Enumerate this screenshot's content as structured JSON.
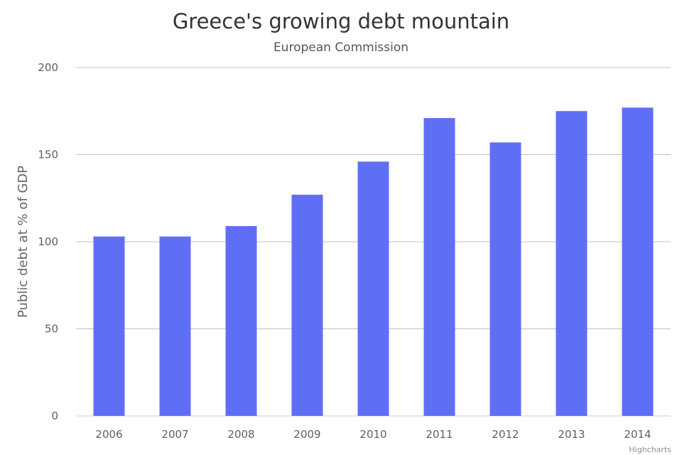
{
  "chart_data": {
    "type": "bar",
    "title": "Greece's growing debt mountain",
    "subtitle": "European Commission",
    "xlabel": "",
    "ylabel": "Public debt at % of GDP",
    "categories": [
      "2006",
      "2007",
      "2008",
      "2009",
      "2010",
      "2011",
      "2012",
      "2013",
      "2014"
    ],
    "values": [
      103,
      103,
      109,
      127,
      146,
      171,
      157,
      175,
      177
    ],
    "ylim": [
      0,
      200
    ],
    "yticks": [
      0,
      50,
      100,
      150,
      200
    ],
    "grid": true,
    "legend": "none",
    "bar_color": "#5f6ff5",
    "grid_color": "#c0c0c0",
    "axis_color": "#c0d0e0"
  },
  "credit": "Highcharts"
}
